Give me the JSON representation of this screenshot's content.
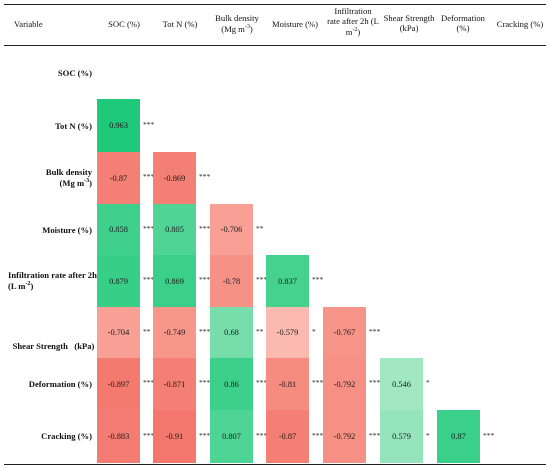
{
  "table": {
    "corner_label": "Variable",
    "columns": [
      {
        "label": "SOC (%)"
      },
      {
        "label": "Tot N (%)"
      },
      {
        "label": "Bulk density",
        "label2": "(Mg m",
        "sup": "-3",
        "label2_end": ")"
      },
      {
        "label": "Moisture (%)"
      },
      {
        "label": "Infiltration",
        "label2": "rate after 2h (L",
        "label3": "m",
        "sup3": "-2",
        "label3_end": ")"
      },
      {
        "label": "Shear Strength",
        "label2": "(kPa)"
      },
      {
        "label": "Deformation",
        "label2": "(%)"
      },
      {
        "label": "Cracking (%)"
      }
    ],
    "rows": [
      {
        "label": "SOC (%)"
      },
      {
        "label": "Tot N (%)"
      },
      {
        "label": "Bulk density",
        "label2": "(Mg m",
        "sup": "-3",
        "label2_end": ")"
      },
      {
        "label": "Moisture (%)"
      },
      {
        "label": "Infiltration rate after 2h",
        "label2": "(L m",
        "sup": "-2",
        "label2_end": ")"
      },
      {
        "label": "Shear Strength   (kPa)"
      },
      {
        "label": "Deformation (%)"
      },
      {
        "label": "Cracking (%)"
      }
    ]
  },
  "chart_data": {
    "type": "heatmap",
    "title": "",
    "variables": [
      "SOC (%)",
      "Tot N (%)",
      "Bulk density (Mg m-3)",
      "Moisture (%)",
      "Infiltration rate after 2h (L m-2)",
      "Shear Strength (kPa)",
      "Deformation (%)",
      "Cracking (%)"
    ],
    "color_scale": {
      "positive": "#1ec97a",
      "negative": "#f26d62",
      "weak": "#ffd9cf"
    },
    "cells": [
      {
        "row": 1,
        "col": 0,
        "value": 0.963,
        "label": "0.963",
        "sig": "***"
      },
      {
        "row": 2,
        "col": 0,
        "value": -0.87,
        "label": "-0.87",
        "sig": "***"
      },
      {
        "row": 2,
        "col": 1,
        "value": -0.869,
        "label": "-0.869",
        "sig": "***"
      },
      {
        "row": 3,
        "col": 0,
        "value": 0.858,
        "label": "0.858",
        "sig": "***"
      },
      {
        "row": 3,
        "col": 1,
        "value": 0.805,
        "label": "0.805",
        "sig": "***"
      },
      {
        "row": 3,
        "col": 2,
        "value": -0.706,
        "label": "-0.706",
        "sig": "**"
      },
      {
        "row": 4,
        "col": 0,
        "value": 0.879,
        "label": "0.879",
        "sig": "***"
      },
      {
        "row": 4,
        "col": 1,
        "value": 0.869,
        "label": "0.869",
        "sig": "***"
      },
      {
        "row": 4,
        "col": 2,
        "value": -0.78,
        "label": "-0.78",
        "sig": "***"
      },
      {
        "row": 4,
        "col": 3,
        "value": 0.837,
        "label": "0.837",
        "sig": "***"
      },
      {
        "row": 5,
        "col": 0,
        "value": -0.704,
        "label": "-0.704",
        "sig": "**"
      },
      {
        "row": 5,
        "col": 1,
        "value": -0.749,
        "label": "-0.749",
        "sig": "***"
      },
      {
        "row": 5,
        "col": 2,
        "value": 0.68,
        "label": "0.68",
        "sig": "**"
      },
      {
        "row": 5,
        "col": 3,
        "value": -0.579,
        "label": "-0.579",
        "sig": "*"
      },
      {
        "row": 5,
        "col": 4,
        "value": -0.767,
        "label": "-0.767",
        "sig": "***"
      },
      {
        "row": 6,
        "col": 0,
        "value": -0.897,
        "label": "-0.897",
        "sig": "***"
      },
      {
        "row": 6,
        "col": 1,
        "value": -0.871,
        "label": "-0.871",
        "sig": "***"
      },
      {
        "row": 6,
        "col": 2,
        "value": 0.86,
        "label": "0.86",
        "sig": "***"
      },
      {
        "row": 6,
        "col": 3,
        "value": -0.81,
        "label": "-0.81",
        "sig": "***"
      },
      {
        "row": 6,
        "col": 4,
        "value": -0.792,
        "label": "-0.792",
        "sig": "***"
      },
      {
        "row": 6,
        "col": 5,
        "value": 0.546,
        "label": "0.546",
        "sig": "*"
      },
      {
        "row": 7,
        "col": 0,
        "value": -0.883,
        "label": "-0.883",
        "sig": "***"
      },
      {
        "row": 7,
        "col": 1,
        "value": -0.91,
        "label": "-0.91",
        "sig": "***"
      },
      {
        "row": 7,
        "col": 2,
        "value": 0.807,
        "label": "0.807",
        "sig": "***"
      },
      {
        "row": 7,
        "col": 3,
        "value": -0.87,
        "label": "-0.87",
        "sig": "***"
      },
      {
        "row": 7,
        "col": 4,
        "value": -0.792,
        "label": "-0.792",
        "sig": "***"
      },
      {
        "row": 7,
        "col": 5,
        "value": 0.579,
        "label": "0.579",
        "sig": "*"
      },
      {
        "row": 7,
        "col": 6,
        "value": 0.87,
        "label": "0.87",
        "sig": "***"
      }
    ]
  }
}
